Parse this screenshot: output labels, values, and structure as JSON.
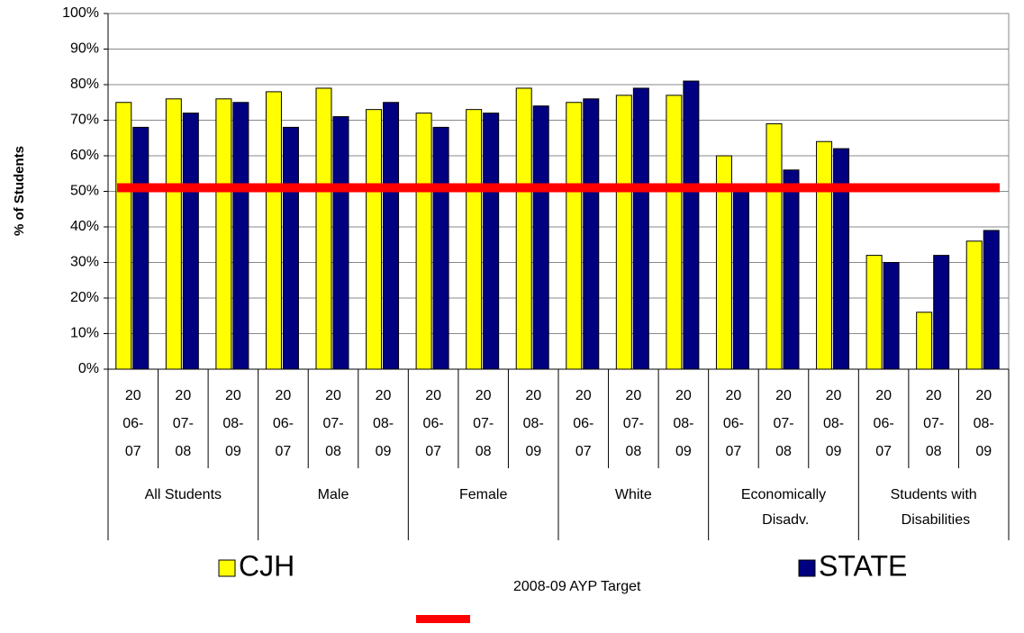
{
  "chart_data": {
    "type": "bar",
    "y_label": "% of Students",
    "groups": [
      "All Students",
      "Male",
      "Female",
      "White",
      "Economically Disadv.",
      "Students with Disabilities"
    ],
    "categories": [
      "2006-07",
      "2007-08",
      "2008-09",
      "2006-07",
      "2007-08",
      "2008-09",
      "2006-07",
      "2007-08",
      "2008-09",
      "2006-07",
      "2007-08",
      "2008-09",
      "2006-07",
      "2007-08",
      "2008-09",
      "2006-07",
      "2007-08",
      "2008-09"
    ],
    "series": [
      {
        "name": "CJH",
        "color": "#ffff00",
        "values": [
          75,
          76,
          76,
          78,
          79,
          73,
          72,
          73,
          79,
          75,
          77,
          77,
          60,
          69,
          64,
          32,
          16,
          36
        ]
      },
      {
        "name": "STATE",
        "color": "#000080",
        "values": [
          68,
          72,
          75,
          68,
          71,
          75,
          68,
          72,
          74,
          76,
          79,
          81,
          51,
          56,
          62,
          30,
          32,
          39
        ]
      }
    ],
    "target": {
      "name": "2008-09 AYP Target",
      "value": 51,
      "color": "#ff0000"
    },
    "ylim": [
      0,
      100
    ],
    "yticks": [
      {
        "value": 0,
        "label": "0%"
      },
      {
        "value": 10,
        "label": "10%"
      },
      {
        "value": 20,
        "label": "20%"
      },
      {
        "value": 30,
        "label": "30%"
      },
      {
        "value": 40,
        "label": "40%"
      },
      {
        "value": 50,
        "label": "50%"
      },
      {
        "value": 60,
        "label": "60%"
      },
      {
        "value": 70,
        "label": "70%"
      },
      {
        "value": 80,
        "label": "80%"
      },
      {
        "value": 90,
        "label": "90%"
      },
      {
        "value": 100,
        "label": "100%"
      }
    ],
    "grid": true
  }
}
